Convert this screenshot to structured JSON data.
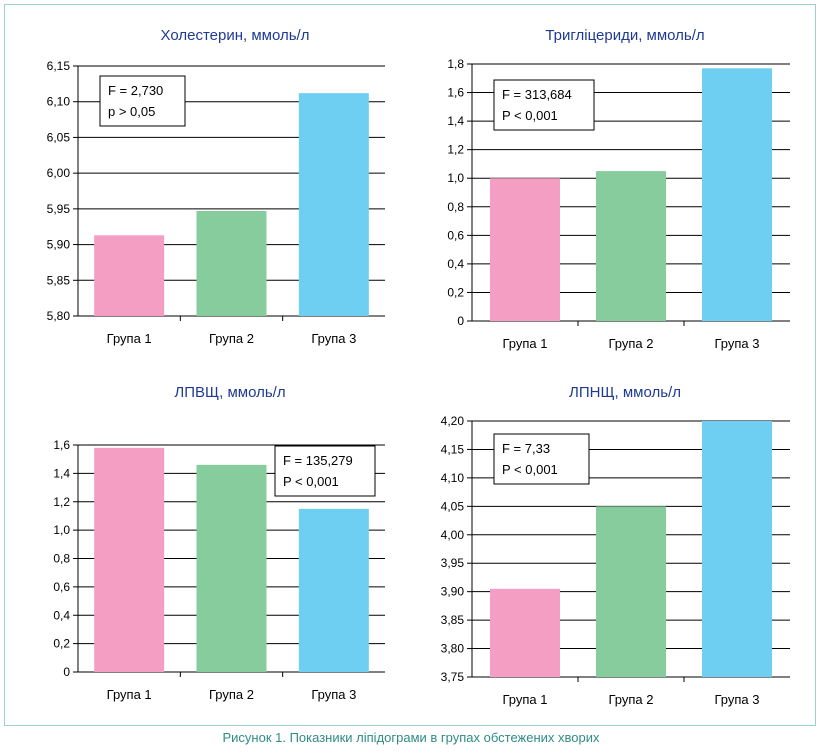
{
  "caption": "Рисунок 1.  Показники ліпідограми в групах обстежених хворих",
  "colors": [
    "#f49ec4",
    "#86cc9c",
    "#6fcff3"
  ],
  "chart_data": [
    {
      "type": "bar",
      "title": "Холестерин, ммоль/л",
      "categories": [
        "Група 1",
        "Група 2",
        "Група 3"
      ],
      "values": [
        5.913,
        5.947,
        6.112
      ],
      "ylim": [
        5.8,
        6.15
      ],
      "yticks": [
        5.8,
        5.85,
        5.9,
        5.95,
        6.0,
        6.05,
        6.1,
        6.15
      ],
      "ytick_labels": [
        "5,80",
        "5,85",
        "5,90",
        "5,95",
        "6,00",
        "6,05",
        "6,10",
        "6,15"
      ],
      "grid": true,
      "annotation": [
        "F = 2,730",
        "p > 0,05"
      ],
      "annotation_position": "top-left"
    },
    {
      "type": "bar",
      "title": "Тригліцериди, ммоль/л",
      "categories": [
        "Група 1",
        "Група 2",
        "Група 3"
      ],
      "values": [
        1.0,
        1.05,
        1.77
      ],
      "ylim": [
        0,
        1.8
      ],
      "yticks": [
        0,
        0.2,
        0.4,
        0.6,
        0.8,
        1.0,
        1.2,
        1.4,
        1.6,
        1.8
      ],
      "ytick_labels": [
        "0",
        "0,2",
        "0,4",
        "0,6",
        "0,8",
        "1,0",
        "1,2",
        "1,4",
        "1,6",
        "1,8"
      ],
      "grid": true,
      "annotation": [
        "F = 313,684",
        "P < 0,001"
      ],
      "annotation_position": "top-left"
    },
    {
      "type": "bar",
      "title": "ЛПВЩ, ммоль/л",
      "categories": [
        "Група 1",
        "Група 2",
        "Група 3"
      ],
      "values": [
        1.58,
        1.46,
        1.15
      ],
      "ylim": [
        0,
        1.6
      ],
      "yticks": [
        0,
        0.2,
        0.4,
        0.6,
        0.8,
        1.0,
        1.2,
        1.4,
        1.6
      ],
      "ytick_labels": [
        "0",
        "0,2",
        "0,4",
        "0,6",
        "0,8",
        "1,0",
        "1,2",
        "1,4",
        "1,6"
      ],
      "grid": true,
      "annotation": [
        "F = 135,279",
        "P < 0,001"
      ],
      "annotation_position": "top-right"
    },
    {
      "type": "bar",
      "title": "ЛПНЩ, ммоль/л",
      "categories": [
        "Група 1",
        "Група 2",
        "Група 3"
      ],
      "values": [
        3.905,
        4.05,
        4.2
      ],
      "ylim": [
        3.75,
        4.2
      ],
      "yticks": [
        3.75,
        3.8,
        3.85,
        3.9,
        3.95,
        4.0,
        4.05,
        4.1,
        4.15,
        4.2
      ],
      "ytick_labels": [
        "3,75",
        "3,80",
        "3,85",
        "3,90",
        "3,95",
        "4,00",
        "4,05",
        "4,10",
        "4,15",
        "4,20"
      ],
      "grid": true,
      "annotation": [
        "F = 7,33",
        "P < 0,001"
      ],
      "annotation_position": "top-left"
    }
  ]
}
